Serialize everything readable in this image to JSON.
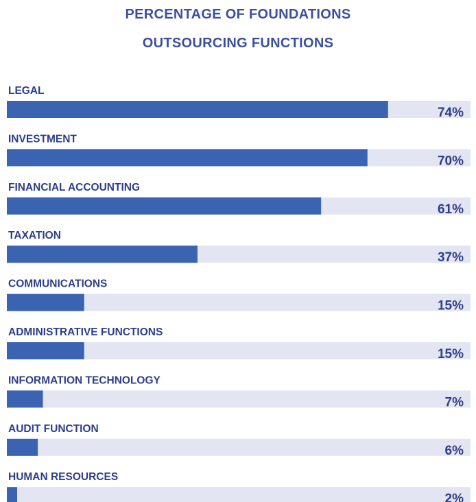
{
  "chart_data": {
    "type": "bar",
    "orientation": "horizontal",
    "title": [
      "PERCENTAGE OF FOUNDATIONS",
      "OUTSOURCING FUNCTIONS"
    ],
    "categories": [
      "LEGAL",
      "INVESTMENT",
      "FINANCIAL ACCOUNTING",
      "TAXATION",
      "COMMUNICATIONS",
      "ADMINISTRATIVE FUNCTIONS",
      "INFORMATION TECHNOLOGY",
      "AUDIT FUNCTION",
      "HUMAN RESOURCES"
    ],
    "values": [
      74,
      70,
      61,
      37,
      15,
      15,
      7,
      6,
      2
    ],
    "value_labels": [
      "74%",
      "70%",
      "61%",
      "37%",
      "15%",
      "15%",
      "7%",
      "6%",
      "2%"
    ],
    "color": "#3a63b1",
    "track_color": "#e3e5f3",
    "xlim": [
      0,
      90
    ]
  }
}
